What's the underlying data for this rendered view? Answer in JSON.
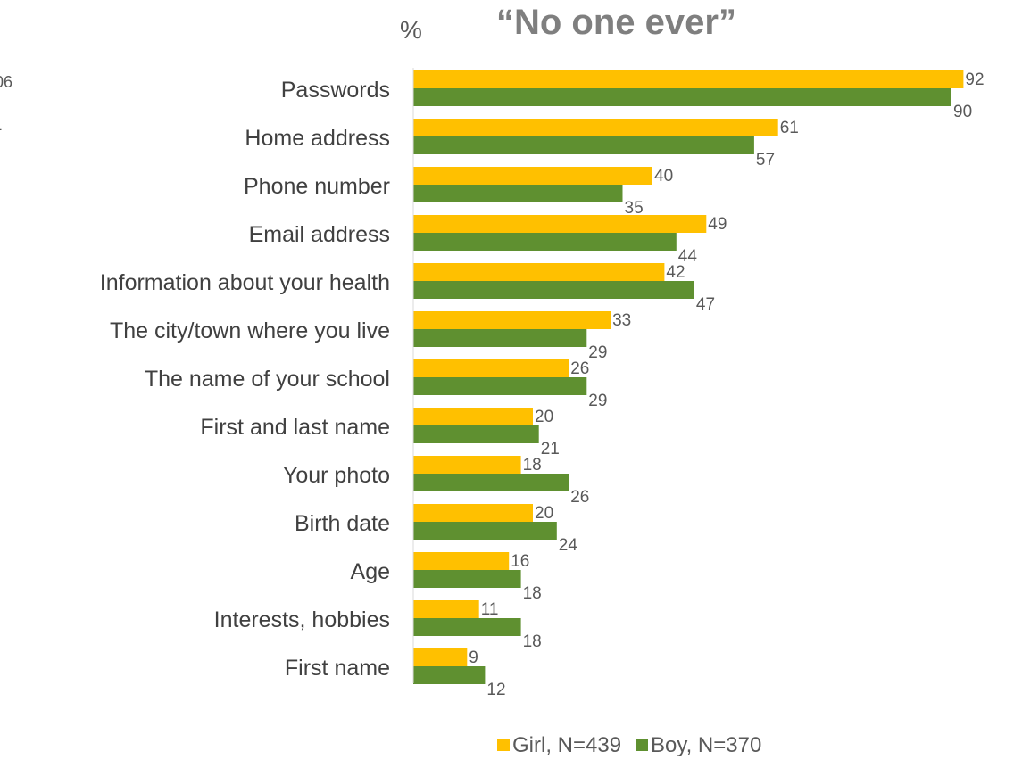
{
  "chart_data": {
    "type": "bar",
    "orientation": "horizontal",
    "title": "“No one ever”",
    "unit_label": "%",
    "categories": [
      "Passwords",
      "Home address",
      "Phone number",
      "Email address",
      "Information about your health",
      "The city/town where you live",
      "The name of your school",
      "First and last name",
      "Your photo",
      "Birth date",
      "Age",
      "Interests, hobbies",
      "First name"
    ],
    "series": [
      {
        "name": "Girl, N=439",
        "color": "#FFC000",
        "values": [
          92,
          61,
          40,
          49,
          42,
          33,
          26,
          20,
          18,
          20,
          16,
          11,
          9
        ]
      },
      {
        "name": "Boy, N=370",
        "color": "#5F9030",
        "values": [
          90,
          57,
          35,
          44,
          47,
          29,
          29,
          21,
          26,
          24,
          18,
          18,
          12
        ]
      }
    ],
    "xlim": [
      0,
      100
    ],
    "grid": false,
    "legend_position": "bottom",
    "edge_fragments": [
      "06",
      "4"
    ]
  }
}
